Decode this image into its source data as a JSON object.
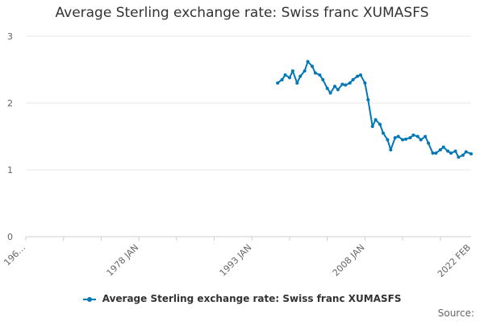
{
  "chart_data": {
    "type": "line",
    "title": "Average Sterling exchange rate: Swiss franc XUMASFS",
    "xlabel": "",
    "ylabel": "",
    "ylim": [
      0,
      3
    ],
    "yticks": [
      "0",
      "1",
      "2",
      "3"
    ],
    "xlim": [
      "1963 JAN",
      "2022 FEB"
    ],
    "xticks": [
      "196…",
      "1978 JAN",
      "1993 JAN",
      "2008 JAN",
      "2022 FEB"
    ],
    "grid": true,
    "legend_position": "bottom",
    "series": [
      {
        "name": "Average Sterling exchange rate: Swiss franc XUMASFS",
        "color": "#0077b6",
        "x": [
          "1996-06",
          "1997-01",
          "1997-06",
          "1998-01",
          "1998-06",
          "1999-01",
          "1999-06",
          "2000-01",
          "2000-06",
          "2001-01",
          "2001-06",
          "2002-01",
          "2002-06",
          "2003-01",
          "2003-06",
          "2004-01",
          "2004-06",
          "2005-01",
          "2005-06",
          "2006-01",
          "2006-06",
          "2007-01",
          "2007-06",
          "2008-01",
          "2008-06",
          "2009-01",
          "2009-06",
          "2010-01",
          "2010-06",
          "2011-01",
          "2011-06",
          "2012-01",
          "2012-06",
          "2013-01",
          "2013-06",
          "2014-01",
          "2014-06",
          "2015-01",
          "2015-06",
          "2016-01",
          "2016-06",
          "2017-01",
          "2017-06",
          "2018-01",
          "2018-06",
          "2019-01",
          "2019-06",
          "2020-01",
          "2020-06",
          "2021-01",
          "2021-06",
          "2022-02"
        ],
        "values": [
          2.3,
          2.35,
          2.42,
          2.38,
          2.48,
          2.3,
          2.4,
          2.48,
          2.62,
          2.55,
          2.45,
          2.42,
          2.35,
          2.22,
          2.15,
          2.25,
          2.2,
          2.28,
          2.27,
          2.3,
          2.35,
          2.4,
          2.42,
          2.3,
          2.05,
          1.65,
          1.75,
          1.68,
          1.55,
          1.45,
          1.3,
          1.48,
          1.5,
          1.45,
          1.46,
          1.48,
          1.52,
          1.5,
          1.45,
          1.5,
          1.4,
          1.25,
          1.25,
          1.3,
          1.34,
          1.28,
          1.25,
          1.28,
          1.19,
          1.22,
          1.27,
          1.24
        ]
      }
    ]
  },
  "legend_label": "Average Sterling exchange rate: Swiss franc XUMASFS",
  "credit": "Source:"
}
